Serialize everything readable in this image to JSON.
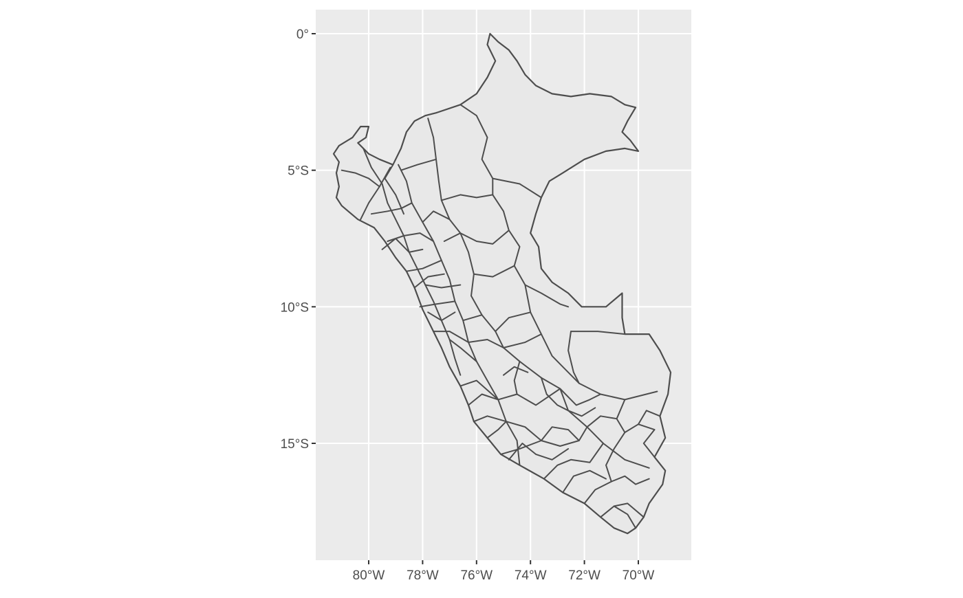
{
  "chart_data": {
    "type": "map",
    "title": "",
    "xlabel": "",
    "ylabel": "",
    "coord": "geographic (longitude / latitude)",
    "xlim": [
      -82,
      -68
    ],
    "ylim": [
      -19.2,
      0.9
    ],
    "grid": true,
    "legend": "none",
    "x_ticks": [
      {
        "value": -80,
        "label": "80°W"
      },
      {
        "value": -78,
        "label": "78°W"
      },
      {
        "value": -76,
        "label": "76°W"
      },
      {
        "value": -74,
        "label": "74°W"
      },
      {
        "value": -72,
        "label": "72°W"
      },
      {
        "value": -70,
        "label": "70°W"
      }
    ],
    "y_ticks": [
      {
        "value": 0,
        "label": "0°"
      },
      {
        "value": -5,
        "label": "5°S"
      },
      {
        "value": -10,
        "label": "10°S"
      },
      {
        "value": -15,
        "label": "15°S"
      }
    ],
    "colors": {
      "panel": "#ebebeb",
      "grid": "#ffffff",
      "region_fill": "#e8e8e8",
      "region_border": "#4d4d4d"
    },
    "outline": [
      [
        -75.5,
        0.0
      ],
      [
        -75.2,
        -0.3
      ],
      [
        -74.8,
        -0.6
      ],
      [
        -74.5,
        -1.0
      ],
      [
        -74.2,
        -1.5
      ],
      [
        -73.8,
        -1.9
      ],
      [
        -73.2,
        -2.2
      ],
      [
        -72.5,
        -2.3
      ],
      [
        -71.8,
        -2.2
      ],
      [
        -71.0,
        -2.3
      ],
      [
        -70.5,
        -2.6
      ],
      [
        -70.1,
        -2.7
      ],
      [
        -70.4,
        -3.2
      ],
      [
        -70.6,
        -3.6
      ],
      [
        -70.3,
        -3.9
      ],
      [
        -70.0,
        -4.3
      ],
      [
        -70.5,
        -4.2
      ],
      [
        -71.2,
        -4.3
      ],
      [
        -72.0,
        -4.6
      ],
      [
        -72.8,
        -5.1
      ],
      [
        -73.3,
        -5.4
      ],
      [
        -73.6,
        -6.0
      ],
      [
        -73.8,
        -6.6
      ],
      [
        -74.0,
        -7.3
      ],
      [
        -73.7,
        -7.8
      ],
      [
        -73.6,
        -8.6
      ],
      [
        -73.2,
        -9.1
      ],
      [
        -72.6,
        -9.5
      ],
      [
        -72.1,
        -10.0
      ],
      [
        -71.2,
        -10.0
      ],
      [
        -70.6,
        -9.5
      ],
      [
        -70.6,
        -10.4
      ],
      [
        -70.5,
        -11.0
      ],
      [
        -69.6,
        -11.0
      ],
      [
        -69.2,
        -11.6
      ],
      [
        -68.8,
        -12.4
      ],
      [
        -68.9,
        -13.2
      ],
      [
        -69.2,
        -14.0
      ],
      [
        -69.0,
        -14.8
      ],
      [
        -69.4,
        -15.5
      ],
      [
        -69.0,
        -16.0
      ],
      [
        -69.1,
        -16.5
      ],
      [
        -69.6,
        -17.2
      ],
      [
        -69.8,
        -17.7
      ],
      [
        -70.1,
        -18.1
      ],
      [
        -70.4,
        -18.3
      ],
      [
        -70.9,
        -18.1
      ],
      [
        -71.4,
        -17.7
      ],
      [
        -72.0,
        -17.2
      ],
      [
        -72.8,
        -16.8
      ],
      [
        -73.5,
        -16.3
      ],
      [
        -74.4,
        -15.8
      ],
      [
        -75.1,
        -15.4
      ],
      [
        -75.6,
        -14.8
      ],
      [
        -76.1,
        -14.2
      ],
      [
        -76.3,
        -13.6
      ],
      [
        -76.6,
        -12.9
      ],
      [
        -77.0,
        -12.2
      ],
      [
        -77.3,
        -11.5
      ],
      [
        -77.6,
        -10.9
      ],
      [
        -78.0,
        -10.1
      ],
      [
        -78.3,
        -9.3
      ],
      [
        -78.6,
        -8.7
      ],
      [
        -79.0,
        -8.2
      ],
      [
        -79.4,
        -7.6
      ],
      [
        -79.8,
        -7.1
      ],
      [
        -80.4,
        -6.8
      ],
      [
        -81.0,
        -6.3
      ],
      [
        -81.2,
        -6.0
      ],
      [
        -81.1,
        -5.6
      ],
      [
        -81.2,
        -5.1
      ],
      [
        -81.1,
        -4.7
      ],
      [
        -81.3,
        -4.4
      ],
      [
        -81.1,
        -4.1
      ],
      [
        -80.6,
        -3.8
      ],
      [
        -80.3,
        -3.4
      ],
      [
        -80.0,
        -3.4
      ],
      [
        -80.1,
        -3.8
      ],
      [
        -80.4,
        -4.0
      ],
      [
        -80.0,
        -4.4
      ],
      [
        -79.6,
        -4.6
      ],
      [
        -79.1,
        -4.8
      ],
      [
        -78.8,
        -4.2
      ],
      [
        -78.6,
        -3.6
      ],
      [
        -78.3,
        -3.2
      ],
      [
        -77.9,
        -3.0
      ],
      [
        -77.5,
        -2.9
      ],
      [
        -76.6,
        -2.6
      ],
      [
        -76.0,
        -2.2
      ],
      [
        -75.6,
        -1.6
      ],
      [
        -75.3,
        -1.0
      ],
      [
        -75.6,
        -0.4
      ]
    ],
    "regions": [
      [
        [
          -76.6,
          -2.6
        ],
        [
          -76.0,
          -3.0
        ],
        [
          -75.6,
          -3.8
        ],
        [
          -75.8,
          -4.6
        ],
        [
          -75.4,
          -5.3
        ],
        [
          -75.4,
          -5.9
        ]
      ],
      [
        [
          -75.4,
          -5.3
        ],
        [
          -74.4,
          -5.5
        ],
        [
          -73.6,
          -6.0
        ]
      ],
      [
        [
          -75.4,
          -5.9
        ],
        [
          -75.0,
          -6.5
        ],
        [
          -74.8,
          -7.2
        ],
        [
          -74.4,
          -7.8
        ],
        [
          -74.6,
          -8.5
        ],
        [
          -74.2,
          -9.2
        ],
        [
          -73.6,
          -9.5
        ],
        [
          -72.9,
          -9.9
        ],
        [
          -72.6,
          -10.0
        ]
      ],
      [
        [
          -74.2,
          -9.2
        ],
        [
          -74.0,
          -10.2
        ],
        [
          -73.6,
          -11.0
        ],
        [
          -73.2,
          -11.8
        ],
        [
          -72.8,
          -12.2
        ],
        [
          -72.2,
          -12.8
        ],
        [
          -71.4,
          -13.2
        ],
        [
          -70.5,
          -13.4
        ],
        [
          -69.3,
          -13.1
        ]
      ],
      [
        [
          -72.5,
          -10.9
        ],
        [
          -71.5,
          -10.9
        ],
        [
          -70.5,
          -11.0
        ]
      ],
      [
        [
          -72.5,
          -10.9
        ],
        [
          -72.6,
          -11.6
        ],
        [
          -72.4,
          -12.4
        ],
        [
          -72.2,
          -12.8
        ]
      ],
      [
        [
          -77.8,
          -3.1
        ],
        [
          -77.6,
          -3.8
        ],
        [
          -77.5,
          -4.6
        ],
        [
          -77.4,
          -5.4
        ],
        [
          -77.3,
          -6.1
        ],
        [
          -77.0,
          -6.8
        ],
        [
          -76.6,
          -7.3
        ],
        [
          -76.3,
          -8.0
        ],
        [
          -76.1,
          -8.8
        ]
      ],
      [
        [
          -77.3,
          -6.1
        ],
        [
          -76.6,
          -5.9
        ],
        [
          -76.0,
          -6.0
        ],
        [
          -75.4,
          -5.9
        ]
      ],
      [
        [
          -77.2,
          -7.6
        ],
        [
          -76.6,
          -7.3
        ],
        [
          -76.0,
          -7.6
        ],
        [
          -75.4,
          -7.7
        ],
        [
          -74.8,
          -7.2
        ]
      ],
      [
        [
          -76.1,
          -8.8
        ],
        [
          -75.4,
          -8.9
        ],
        [
          -74.6,
          -8.5
        ]
      ],
      [
        [
          -76.1,
          -8.8
        ],
        [
          -76.2,
          -9.6
        ],
        [
          -75.8,
          -10.3
        ],
        [
          -75.3,
          -10.9
        ],
        [
          -75.0,
          -11.5
        ],
        [
          -74.4,
          -12.0
        ],
        [
          -73.6,
          -12.6
        ],
        [
          -72.9,
          -13.0
        ],
        [
          -72.6,
          -13.8
        ],
        [
          -71.9,
          -14.4
        ],
        [
          -71.3,
          -15.0
        ],
        [
          -70.5,
          -15.6
        ],
        [
          -69.6,
          -15.9
        ]
      ],
      [
        [
          -78.9,
          -4.8
        ],
        [
          -78.6,
          -5.4
        ],
        [
          -78.4,
          -6.2
        ],
        [
          -78.0,
          -6.9
        ],
        [
          -77.6,
          -7.6
        ],
        [
          -77.3,
          -8.3
        ],
        [
          -77.0,
          -9.0
        ],
        [
          -76.8,
          -9.8
        ],
        [
          -76.5,
          -10.5
        ],
        [
          -76.3,
          -11.3
        ],
        [
          -76.0,
          -12.0
        ],
        [
          -75.6,
          -12.7
        ],
        [
          -75.2,
          -13.4
        ],
        [
          -74.9,
          -14.2
        ],
        [
          -74.5,
          -14.9
        ],
        [
          -74.4,
          -15.8
        ]
      ],
      [
        [
          -80.2,
          -4.2
        ],
        [
          -79.9,
          -4.9
        ],
        [
          -79.5,
          -5.5
        ],
        [
          -79.3,
          -6.2
        ],
        [
          -79.0,
          -6.8
        ],
        [
          -78.7,
          -7.4
        ],
        [
          -78.5,
          -8.0
        ],
        [
          -78.2,
          -8.6
        ],
        [
          -77.9,
          -9.2
        ],
        [
          -77.6,
          -9.8
        ],
        [
          -77.3,
          -10.5
        ],
        [
          -77.0,
          -11.2
        ],
        [
          -76.8,
          -11.9
        ],
        [
          -76.6,
          -12.5
        ]
      ],
      [
        [
          -81.0,
          -5.0
        ],
        [
          -80.5,
          -5.1
        ],
        [
          -80.0,
          -5.3
        ],
        [
          -79.6,
          -5.6
        ]
      ],
      [
        [
          -79.9,
          -6.6
        ],
        [
          -79.3,
          -6.5
        ],
        [
          -78.8,
          -6.4
        ],
        [
          -78.4,
          -6.2
        ]
      ],
      [
        [
          -79.3,
          -7.6
        ],
        [
          -78.7,
          -7.4
        ],
        [
          -78.1,
          -7.3
        ],
        [
          -77.6,
          -7.6
        ]
      ],
      [
        [
          -78.6,
          -8.7
        ],
        [
          -78.0,
          -8.6
        ],
        [
          -77.3,
          -8.3
        ]
      ],
      [
        [
          -78.1,
          -10.0
        ],
        [
          -77.5,
          -9.9
        ],
        [
          -76.8,
          -9.8
        ]
      ],
      [
        [
          -77.6,
          -10.9
        ],
        [
          -77.0,
          -10.9
        ],
        [
          -76.3,
          -11.3
        ],
        [
          -75.6,
          -11.2
        ],
        [
          -75.0,
          -11.5
        ]
      ],
      [
        [
          -76.6,
          -12.9
        ],
        [
          -76.0,
          -12.7
        ],
        [
          -75.2,
          -13.4
        ],
        [
          -74.5,
          -13.2
        ],
        [
          -73.8,
          -13.6
        ],
        [
          -72.9,
          -13.0
        ]
      ],
      [
        [
          -76.1,
          -14.2
        ],
        [
          -75.6,
          -14.0
        ],
        [
          -74.9,
          -14.2
        ],
        [
          -74.2,
          -14.4
        ],
        [
          -73.6,
          -14.9
        ],
        [
          -72.9,
          -15.1
        ],
        [
          -72.2,
          -14.9
        ],
        [
          -71.9,
          -14.4
        ]
      ],
      [
        [
          -75.1,
          -15.4
        ],
        [
          -74.4,
          -15.2
        ],
        [
          -73.6,
          -14.9
        ]
      ],
      [
        [
          -73.5,
          -16.3
        ],
        [
          -73.0,
          -15.8
        ],
        [
          -72.5,
          -15.6
        ],
        [
          -71.8,
          -15.7
        ],
        [
          -71.3,
          -15.0
        ]
      ],
      [
        [
          -72.0,
          -17.2
        ],
        [
          -71.6,
          -16.7
        ],
        [
          -71.0,
          -16.4
        ],
        [
          -70.5,
          -16.2
        ],
        [
          -70.1,
          -16.5
        ],
        [
          -69.6,
          -16.3
        ]
      ],
      [
        [
          -71.4,
          -17.7
        ],
        [
          -70.9,
          -17.3
        ],
        [
          -70.4,
          -17.2
        ],
        [
          -69.8,
          -17.7
        ]
      ],
      [
        [
          -71.0,
          -16.4
        ],
        [
          -71.2,
          -15.8
        ],
        [
          -70.9,
          -15.2
        ],
        [
          -70.5,
          -14.6
        ],
        [
          -70.0,
          -14.3
        ],
        [
          -69.4,
          -14.5
        ]
      ],
      [
        [
          -70.5,
          -13.4
        ],
        [
          -70.8,
          -14.1
        ],
        [
          -70.5,
          -14.6
        ]
      ],
      [
        [
          -73.6,
          -12.6
        ],
        [
          -73.4,
          -13.2
        ],
        [
          -73.0,
          -13.6
        ],
        [
          -72.6,
          -13.8
        ]
      ],
      [
        [
          -74.4,
          -12.0
        ],
        [
          -74.6,
          -12.7
        ],
        [
          -74.5,
          -13.2
        ]
      ],
      [
        [
          -74.0,
          -10.2
        ],
        [
          -74.8,
          -10.4
        ],
        [
          -75.3,
          -10.9
        ]
      ],
      [
        [
          -75.8,
          -10.3
        ],
        [
          -76.5,
          -10.5
        ]
      ],
      [
        [
          -73.6,
          -11.0
        ],
        [
          -74.2,
          -11.3
        ],
        [
          -75.0,
          -11.5
        ]
      ],
      [
        [
          -79.1,
          -4.8
        ],
        [
          -79.4,
          -5.3
        ],
        [
          -79.0,
          -5.9
        ],
        [
          -78.7,
          -6.6
        ]
      ],
      [
        [
          -80.3,
          -6.8
        ],
        [
          -80.0,
          -6.2
        ],
        [
          -79.6,
          -5.6
        ],
        [
          -79.2,
          -4.9
        ]
      ],
      [
        [
          -77.5,
          -4.6
        ],
        [
          -78.2,
          -4.8
        ],
        [
          -78.8,
          -5.0
        ]
      ],
      [
        [
          -78.0,
          -6.9
        ],
        [
          -77.6,
          -6.5
        ],
        [
          -77.0,
          -6.8
        ]
      ],
      [
        [
          -77.9,
          -9.2
        ],
        [
          -77.3,
          -9.3
        ],
        [
          -76.6,
          -9.2
        ]
      ],
      [
        [
          -77.0,
          -11.2
        ],
        [
          -76.6,
          -11.5
        ],
        [
          -76.0,
          -12.0
        ]
      ],
      [
        [
          -79.5,
          -7.9
        ],
        [
          -79.0,
          -7.5
        ],
        [
          -78.5,
          -8.0
        ],
        [
          -78.0,
          -7.9
        ]
      ],
      [
        [
          -78.3,
          -9.3
        ],
        [
          -77.8,
          -8.9
        ],
        [
          -77.2,
          -8.8
        ]
      ],
      [
        [
          -77.8,
          -10.2
        ],
        [
          -77.3,
          -10.5
        ],
        [
          -76.8,
          -10.2
        ]
      ],
      [
        [
          -76.3,
          -13.6
        ],
        [
          -75.8,
          -13.2
        ],
        [
          -75.2,
          -13.4
        ]
      ],
      [
        [
          -74.8,
          -15.6
        ],
        [
          -74.3,
          -15.0
        ],
        [
          -73.8,
          -15.4
        ],
        [
          -73.2,
          -15.6
        ],
        [
          -72.6,
          -15.2
        ]
      ],
      [
        [
          -72.8,
          -16.8
        ],
        [
          -72.4,
          -16.2
        ],
        [
          -71.8,
          -16.0
        ],
        [
          -71.2,
          -16.3
        ]
      ],
      [
        [
          -70.1,
          -18.1
        ],
        [
          -70.4,
          -17.6
        ],
        [
          -70.9,
          -17.3
        ]
      ],
      [
        [
          -69.4,
          -15.5
        ],
        [
          -69.8,
          -15.0
        ],
        [
          -69.4,
          -14.5
        ]
      ],
      [
        [
          -69.2,
          -14.0
        ],
        [
          -69.7,
          -13.8
        ],
        [
          -70.0,
          -14.3
        ]
      ],
      [
        [
          -72.9,
          -13.0
        ],
        [
          -72.3,
          -13.6
        ],
        [
          -71.8,
          -13.4
        ],
        [
          -71.4,
          -13.2
        ]
      ],
      [
        [
          -75.6,
          -14.8
        ],
        [
          -75.2,
          -14.5
        ],
        [
          -74.9,
          -14.2
        ]
      ],
      [
        [
          -72.6,
          -13.8
        ],
        [
          -72.1,
          -14.0
        ],
        [
          -71.6,
          -13.7
        ]
      ],
      [
        [
          -71.9,
          -14.4
        ],
        [
          -71.4,
          -14.0
        ],
        [
          -70.8,
          -14.1
        ]
      ],
      [
        [
          -73.6,
          -14.9
        ],
        [
          -73.2,
          -14.4
        ],
        [
          -72.6,
          -14.5
        ],
        [
          -72.2,
          -14.9
        ]
      ],
      [
        [
          -75.0,
          -12.5
        ],
        [
          -74.6,
          -12.2
        ],
        [
          -74.1,
          -12.4
        ]
      ]
    ]
  }
}
